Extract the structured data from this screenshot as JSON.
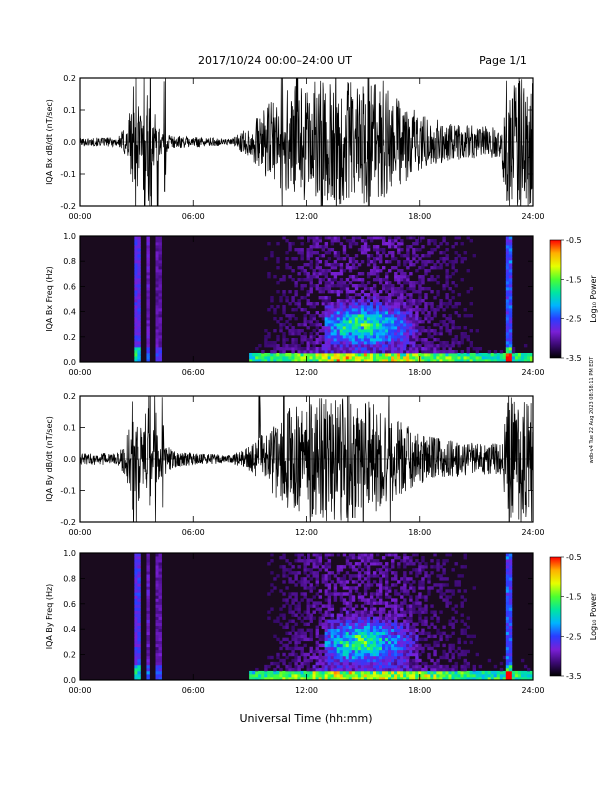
{
  "header": {
    "title": "2017/10/24  00:00–24:00 UT",
    "page": "Page 1/1"
  },
  "side_note": "wdb-v4 Tue 22 Aug 2023 08:58:11 PM EDT",
  "colors": {
    "trace": "#000000",
    "background": "#ffffff",
    "colormap": [
      "#000000",
      "#3b0a72",
      "#7a1fd6",
      "#2a3cff",
      "#00b4ff",
      "#00e6a0",
      "#4cff30",
      "#e6ff00",
      "#ffb000",
      "#ff0000"
    ]
  },
  "chart_data": [
    {
      "type": "line",
      "ylabel": "IQA Bx dB/dt (nT/sec)",
      "xticks": [
        "00:00",
        "06:00",
        "12:00",
        "18:00",
        "24:00"
      ],
      "yticks": [
        "-0.2",
        "-0.1",
        "0.0",
        "0.1",
        "0.2"
      ],
      "xlim": [
        0,
        24
      ],
      "ylim": [
        -0.2,
        0.2
      ],
      "x_unit": "hours UT",
      "envelope": [
        {
          "hour": 0,
          "amp": 0.012
        },
        {
          "hour": 2,
          "amp": 0.015
        },
        {
          "hour": 2.5,
          "amp": 0.06
        },
        {
          "hour": 2.9,
          "amp": 0.2
        },
        {
          "hour": 3.3,
          "amp": 0.08
        },
        {
          "hour": 3.6,
          "amp": 0.15
        },
        {
          "hour": 4.2,
          "amp": 0.05
        },
        {
          "hour": 5,
          "amp": 0.02
        },
        {
          "hour": 8,
          "amp": 0.01
        },
        {
          "hour": 8.5,
          "amp": 0.03
        },
        {
          "hour": 9,
          "amp": 0.05
        },
        {
          "hour": 10,
          "amp": 0.12
        },
        {
          "hour": 11,
          "amp": 0.17
        },
        {
          "hour": 12.5,
          "amp": 0.19
        },
        {
          "hour": 14,
          "amp": 0.2
        },
        {
          "hour": 15.5,
          "amp": 0.19
        },
        {
          "hour": 17,
          "amp": 0.14
        },
        {
          "hour": 18,
          "amp": 0.09
        },
        {
          "hour": 19.5,
          "amp": 0.06
        },
        {
          "hour": 21,
          "amp": 0.05
        },
        {
          "hour": 22.3,
          "amp": 0.05
        },
        {
          "hour": 22.6,
          "amp": 0.2
        },
        {
          "hour": 24,
          "amp": 0.2
        }
      ],
      "spikes": [
        2.8,
        2.95,
        3.4,
        3.6,
        3.75,
        4.1,
        4.5,
        10.7,
        11.5,
        12.8,
        13.6,
        14.5,
        15.3,
        16.1,
        22.7,
        23.3
      ]
    },
    {
      "type": "heatmap",
      "ylabel": "IQA Bx Freq (Hz)",
      "xticks": [
        "00:00",
        "06:00",
        "12:00",
        "18:00",
        "24:00"
      ],
      "yticks": [
        "0.0",
        "0.2",
        "0.4",
        "0.6",
        "0.8",
        "1.0"
      ],
      "xlim": [
        0,
        24
      ],
      "ylim": [
        0,
        1
      ],
      "colorbar": {
        "label": "Log₁₀ Power",
        "ticks": [
          "-0.5",
          "-1.5",
          "-2.5",
          "-3.5"
        ],
        "range": [
          -3.5,
          -0.5
        ]
      },
      "features": [
        {
          "hour": 3.0,
          "strength": 0.9
        },
        {
          "hour": 3.6,
          "strength": 0.6
        },
        {
          "hour": 4.2,
          "strength": 0.5
        },
        {
          "hour": 22.7,
          "strength": 1.0
        }
      ],
      "enhancement": {
        "start": 13,
        "end": 18,
        "peak_hour": 15,
        "freq_center": 0.3
      }
    },
    {
      "type": "line",
      "ylabel": "IQA By dB/dt (nT/sec)",
      "xticks": [
        "00:00",
        "06:00",
        "12:00",
        "18:00",
        "24:00"
      ],
      "yticks": [
        "-0.2",
        "-0.1",
        "0.0",
        "0.1",
        "0.2"
      ],
      "xlim": [
        0,
        24
      ],
      "ylim": [
        -0.2,
        0.2
      ],
      "x_unit": "hours UT",
      "envelope": [
        {
          "hour": 0,
          "amp": 0.018
        },
        {
          "hour": 2,
          "amp": 0.02
        },
        {
          "hour": 2.5,
          "amp": 0.08
        },
        {
          "hour": 2.9,
          "amp": 0.2
        },
        {
          "hour": 3.3,
          "amp": 0.1
        },
        {
          "hour": 3.6,
          "amp": 0.17
        },
        {
          "hour": 4.3,
          "amp": 0.06
        },
        {
          "hour": 5,
          "amp": 0.025
        },
        {
          "hour": 8,
          "amp": 0.012
        },
        {
          "hour": 9,
          "amp": 0.04
        },
        {
          "hour": 10,
          "amp": 0.1
        },
        {
          "hour": 11,
          "amp": 0.16
        },
        {
          "hour": 12.5,
          "amp": 0.2
        },
        {
          "hour": 14,
          "amp": 0.2
        },
        {
          "hour": 15.5,
          "amp": 0.18
        },
        {
          "hour": 17,
          "amp": 0.12
        },
        {
          "hour": 18,
          "amp": 0.08
        },
        {
          "hour": 19.5,
          "amp": 0.06
        },
        {
          "hour": 21,
          "amp": 0.05
        },
        {
          "hour": 22.3,
          "amp": 0.05
        },
        {
          "hour": 22.6,
          "amp": 0.2
        },
        {
          "hour": 24,
          "amp": 0.2
        }
      ],
      "spikes": [
        2.8,
        3.0,
        3.5,
        3.7,
        4.0,
        4.4,
        9.5,
        10.8,
        12.2,
        13.3,
        14.2,
        15.0,
        16.4,
        22.7,
        23.4
      ]
    },
    {
      "type": "heatmap",
      "ylabel": "IQA By Freq (Hz)",
      "xticks": [
        "00:00",
        "06:00",
        "12:00",
        "18:00",
        "24:00"
      ],
      "yticks": [
        "0.0",
        "0.2",
        "0.4",
        "0.6",
        "0.8",
        "1.0"
      ],
      "xlim": [
        0,
        24
      ],
      "ylim": [
        0,
        1
      ],
      "colorbar": {
        "label": "Log₁₀ Power",
        "ticks": [
          "-0.5",
          "-1.5",
          "-2.5",
          "-3.5"
        ],
        "range": [
          -3.5,
          -0.5
        ]
      },
      "features": [
        {
          "hour": 3.0,
          "strength": 0.9
        },
        {
          "hour": 3.6,
          "strength": 0.6
        },
        {
          "hour": 4.2,
          "strength": 0.5
        },
        {
          "hour": 22.7,
          "strength": 1.0
        }
      ],
      "enhancement": {
        "start": 13,
        "end": 18,
        "peak_hour": 15,
        "freq_center": 0.3
      }
    }
  ],
  "xlabel": "Universal Time (hh:mm)"
}
